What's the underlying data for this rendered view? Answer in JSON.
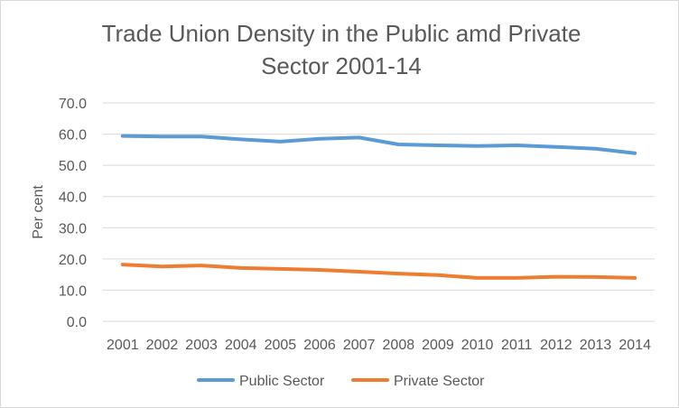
{
  "chart_data": {
    "type": "line",
    "title_lines": [
      "Trade Union Density in the Public amd Private",
      "Sector 2001-14"
    ],
    "xlabel": "",
    "ylabel": "Per cent",
    "categories": [
      "2001",
      "2002",
      "2003",
      "2004",
      "2005",
      "2006",
      "2007",
      "2008",
      "2009",
      "2010",
      "2011",
      "2012",
      "2013",
      "2014"
    ],
    "y_ticks": [
      "0.0",
      "10.0",
      "20.0",
      "30.0",
      "40.0",
      "50.0",
      "60.0",
      "70.0"
    ],
    "ylim": [
      0,
      70
    ],
    "grid": true,
    "legend_position": "bottom",
    "series": [
      {
        "name": "Public Sector",
        "color": "#5b9bd5",
        "values": [
          59.4,
          59.2,
          59.2,
          58.3,
          57.6,
          58.5,
          58.9,
          56.7,
          56.4,
          56.2,
          56.4,
          55.9,
          55.3,
          53.9
        ]
      },
      {
        "name": "Private Sector",
        "color": "#ed7d31",
        "values": [
          18.2,
          17.6,
          17.9,
          17.1,
          16.8,
          16.5,
          15.9,
          15.3,
          14.8,
          13.9,
          13.9,
          14.3,
          14.2,
          13.9
        ]
      }
    ]
  }
}
